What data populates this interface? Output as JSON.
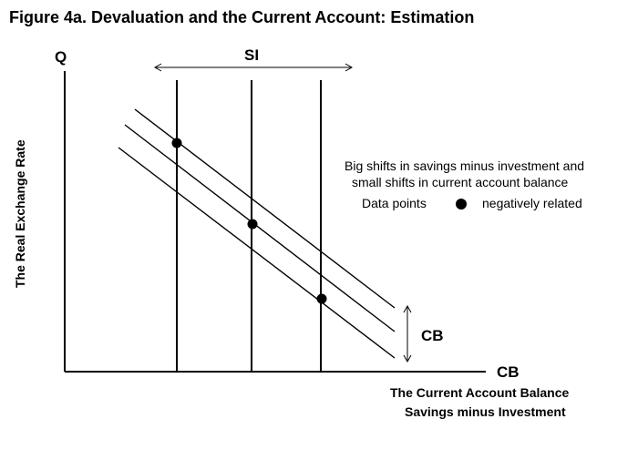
{
  "title": "Figure 4a.   Devaluation and the Current Account:  Estimation",
  "y_axis": {
    "top_label": "Q",
    "label": "The Real Exchange Rate"
  },
  "x_axis": {
    "end_label": "CB",
    "label_line1": "The Current Account Balance",
    "label_line2": "Savings minus Investment"
  },
  "si_label": "SI",
  "cb_shift_label": "CB",
  "annotation": {
    "line1": "Big shifts in  savings minus investment and",
    "line2": "small shifts in current account balance",
    "line3a": "Data points",
    "line3b": "negatively related"
  },
  "data_points_count": 3
}
